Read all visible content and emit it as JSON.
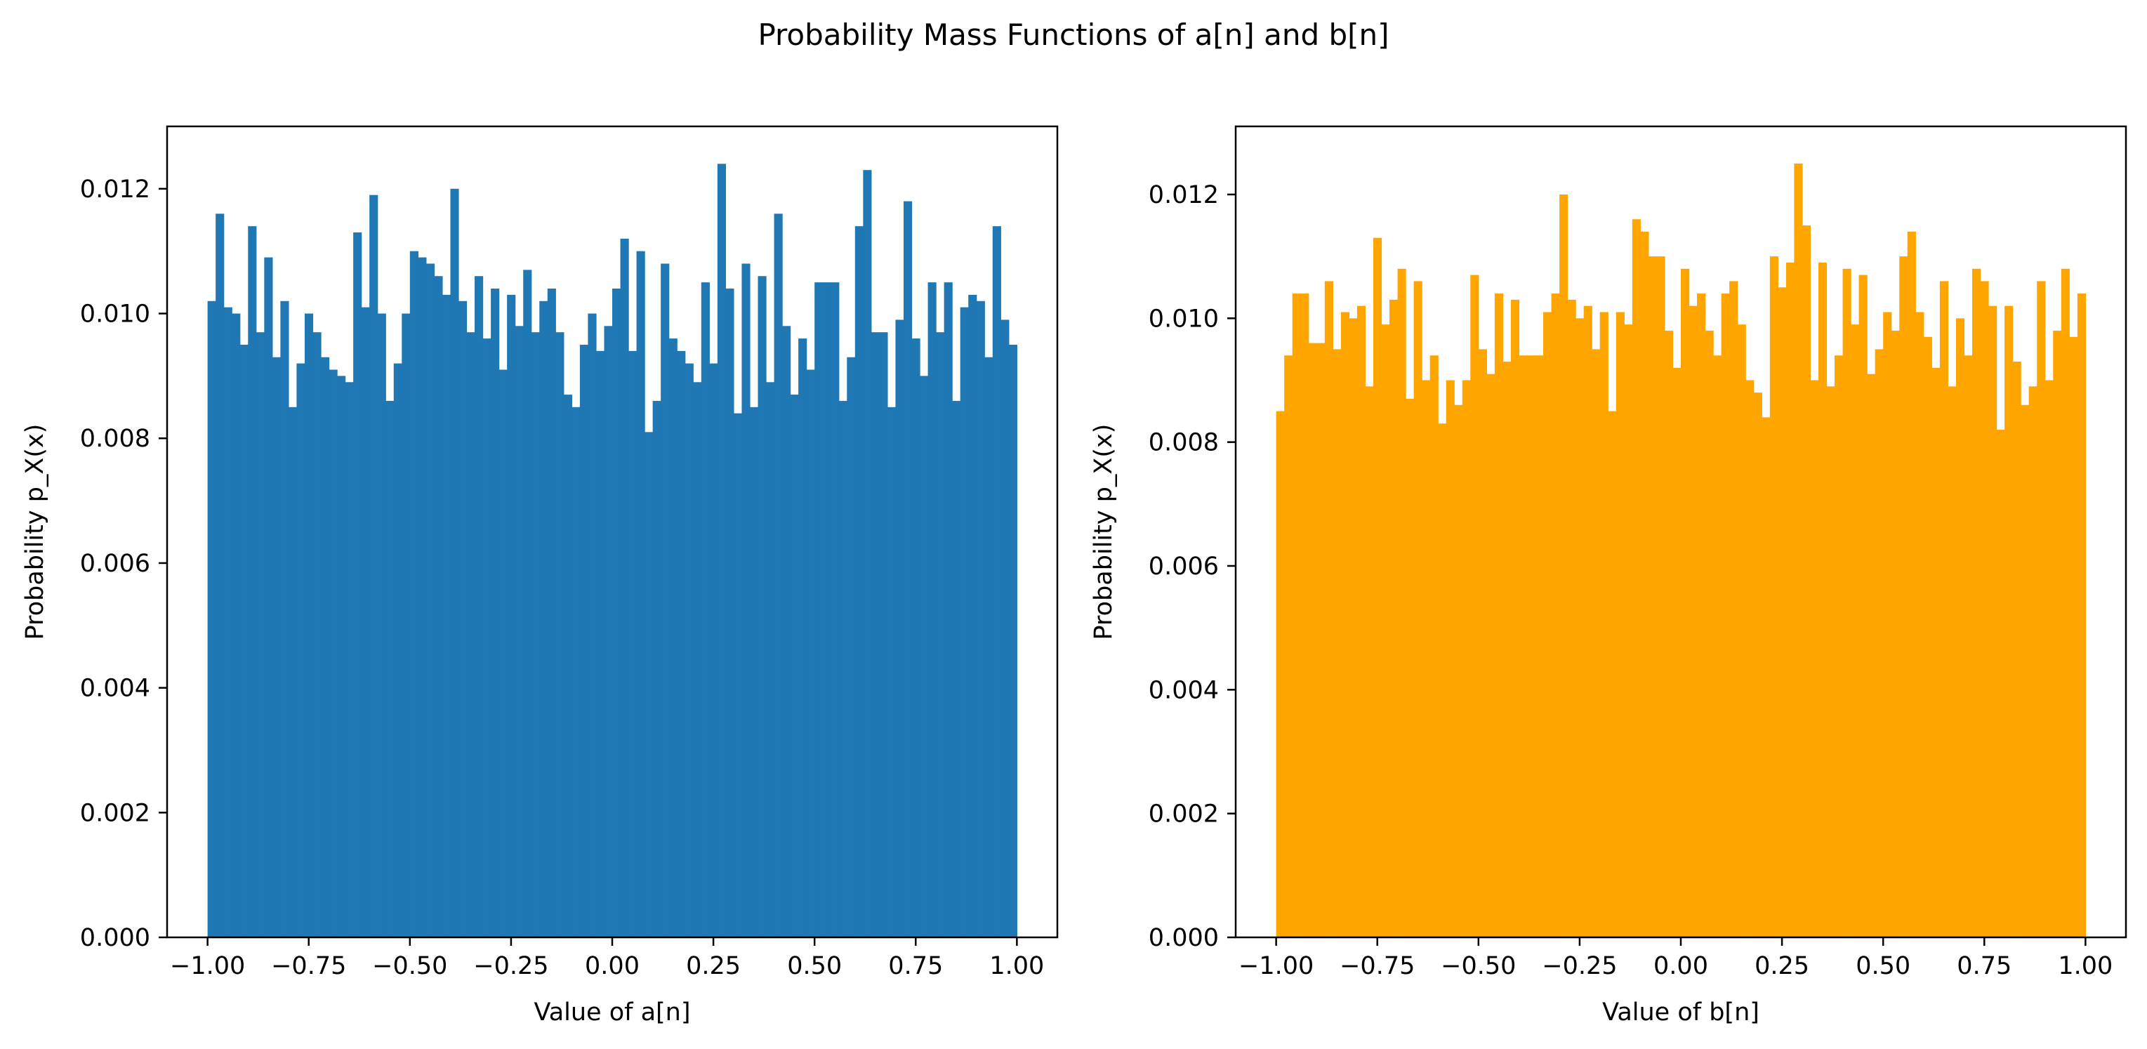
{
  "figure": {
    "title": "Probability Mass Functions of a[n] and b[n]"
  },
  "chart_data": [
    {
      "type": "bar",
      "name": "a-histogram",
      "color": "#1f77b4",
      "xlabel": "Value of a[n]",
      "ylabel": "Probability p_X(x)",
      "xlim": [
        -1.1,
        1.1
      ],
      "ylim": [
        0,
        0.013
      ],
      "xticks": [
        "−1.00",
        "−0.75",
        "−0.50",
        "−0.25",
        "0.00",
        "0.25",
        "0.50",
        "0.75",
        "1.00"
      ],
      "yticks": [
        "0.000",
        "0.002",
        "0.004",
        "0.006",
        "0.008",
        "0.010",
        "0.012"
      ],
      "bin_range": [
        -1.0,
        1.0
      ],
      "bins": 100,
      "values": [
        0.0102,
        0.0116,
        0.0101,
        0.01,
        0.0095,
        0.0114,
        0.0097,
        0.0109,
        0.0093,
        0.0102,
        0.0085,
        0.0092,
        0.01,
        0.0097,
        0.0093,
        0.0091,
        0.009,
        0.0089,
        0.0113,
        0.0101,
        0.0119,
        0.01,
        0.0086,
        0.0092,
        0.01,
        0.011,
        0.0109,
        0.0108,
        0.0106,
        0.0103,
        0.012,
        0.0102,
        0.0097,
        0.0106,
        0.0096,
        0.0104,
        0.0091,
        0.0103,
        0.0098,
        0.0107,
        0.0097,
        0.0102,
        0.0104,
        0.0097,
        0.0087,
        0.0085,
        0.0095,
        0.01,
        0.0094,
        0.0098,
        0.0104,
        0.0112,
        0.0094,
        0.011,
        0.0081,
        0.0086,
        0.0108,
        0.0096,
        0.0094,
        0.0092,
        0.0089,
        0.0105,
        0.0092,
        0.0124,
        0.0104,
        0.0084,
        0.0108,
        0.0085,
        0.0106,
        0.0089,
        0.0116,
        0.0098,
        0.0087,
        0.0096,
        0.0091,
        0.0105,
        0.0105,
        0.0105,
        0.0086,
        0.0093,
        0.0114,
        0.0123,
        0.0097,
        0.0097,
        0.0085,
        0.0099,
        0.0118,
        0.0096,
        0.009,
        0.0105,
        0.0097,
        0.0105,
        0.0086,
        0.0101,
        0.0103,
        0.0102,
        0.0093,
        0.0114,
        0.0099,
        0.0095
      ]
    },
    {
      "type": "bar",
      "name": "b-histogram",
      "color": "#ffa500",
      "xlabel": "Value of b[n]",
      "ylabel": "Probability p_X(x)",
      "xlim": [
        -1.1,
        1.1
      ],
      "ylim": [
        0,
        0.0131
      ],
      "xticks": [
        "−1.00",
        "−0.75",
        "−0.50",
        "−0.25",
        "0.00",
        "0.25",
        "0.50",
        "0.75",
        "1.00"
      ],
      "yticks": [
        "0.000",
        "0.002",
        "0.004",
        "0.006",
        "0.008",
        "0.010",
        "0.012"
      ],
      "bin_range": [
        -1.0,
        1.0
      ],
      "bins": 100,
      "values": [
        0.0085,
        0.0094,
        0.0104,
        0.0104,
        0.0096,
        0.0096,
        0.0106,
        0.0095,
        0.0101,
        0.01,
        0.0102,
        0.0089,
        0.0113,
        0.0099,
        0.0103,
        0.0108,
        0.0087,
        0.0106,
        0.009,
        0.0094,
        0.0083,
        0.009,
        0.0086,
        0.009,
        0.0107,
        0.0095,
        0.0091,
        0.0104,
        0.0093,
        0.0103,
        0.0094,
        0.0094,
        0.0094,
        0.0101,
        0.0104,
        0.012,
        0.0103,
        0.01,
        0.0102,
        0.0095,
        0.0101,
        0.0085,
        0.0101,
        0.0099,
        0.0116,
        0.0114,
        0.011,
        0.011,
        0.0098,
        0.0092,
        0.0108,
        0.0102,
        0.0104,
        0.0098,
        0.0094,
        0.0104,
        0.0106,
        0.0099,
        0.009,
        0.0088,
        0.0084,
        0.011,
        0.0105,
        0.0109,
        0.0125,
        0.0115,
        0.009,
        0.0109,
        0.0089,
        0.0094,
        0.0108,
        0.0099,
        0.0107,
        0.0091,
        0.0095,
        0.0101,
        0.0098,
        0.011,
        0.0114,
        0.0101,
        0.0097,
        0.0092,
        0.0106,
        0.0089,
        0.01,
        0.0094,
        0.0108,
        0.0106,
        0.0102,
        0.0082,
        0.0102,
        0.0093,
        0.0086,
        0.0089,
        0.0106,
        0.009,
        0.0098,
        0.0108,
        0.0097,
        0.0104
      ]
    }
  ]
}
